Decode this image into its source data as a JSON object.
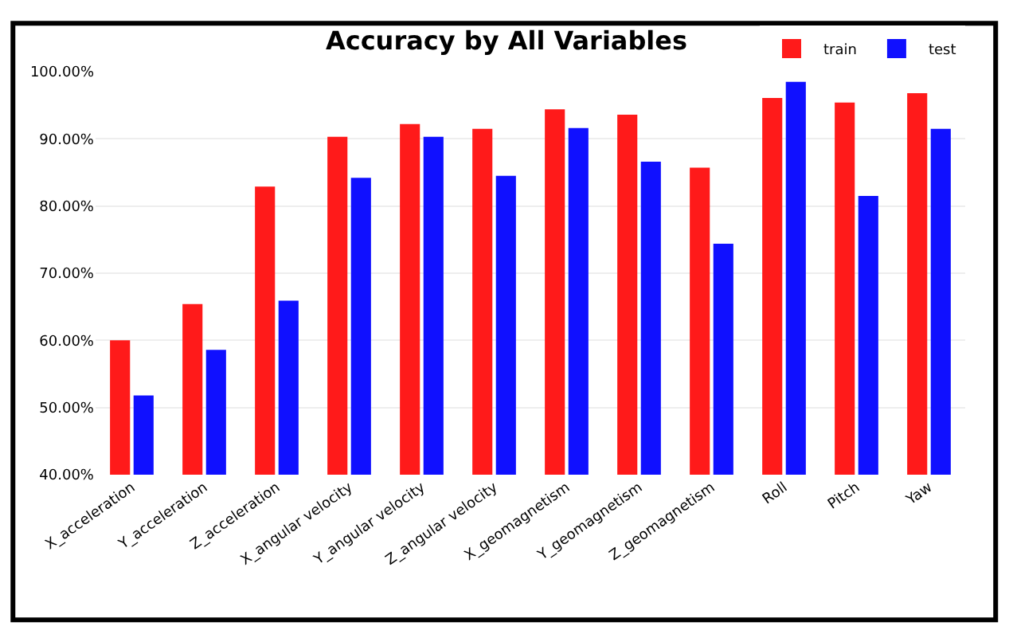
{
  "chart_data": {
    "type": "bar",
    "title": "Accuracy by All Variables",
    "categories": [
      "X_acceleration",
      "Y_acceleration",
      "Z_acceleration",
      "X_angular velocity",
      "Y_angular velocity",
      "Z_angular velocity",
      "X_geomagnetism",
      "Y_geomagnetism",
      "Z_geomagnetism",
      "Roll",
      "Pitch",
      "Yaw"
    ],
    "series": [
      {
        "name": "train",
        "color": "#ff1a1a",
        "values": [
          60.0,
          65.4,
          82.9,
          90.3,
          92.2,
          91.5,
          94.4,
          93.6,
          85.7,
          96.1,
          95.4,
          96.8
        ]
      },
      {
        "name": "test",
        "color": "#1010ff",
        "values": [
          51.8,
          58.6,
          65.9,
          84.2,
          90.3,
          84.5,
          91.6,
          86.6,
          74.4,
          98.5,
          81.5,
          91.5
        ]
      }
    ],
    "ylim": [
      40,
      100
    ],
    "yticks": [
      {
        "value": 40,
        "label": "40.00%"
      },
      {
        "value": 50,
        "label": "50.00%"
      },
      {
        "value": 60,
        "label": "60.00%"
      },
      {
        "value": 70,
        "label": "70.00%"
      },
      {
        "value": 80,
        "label": "80.00%"
      },
      {
        "value": 90,
        "label": "90.00%"
      },
      {
        "value": 100,
        "label": "100.00%"
      }
    ],
    "grid": "y",
    "legend": "top right"
  }
}
